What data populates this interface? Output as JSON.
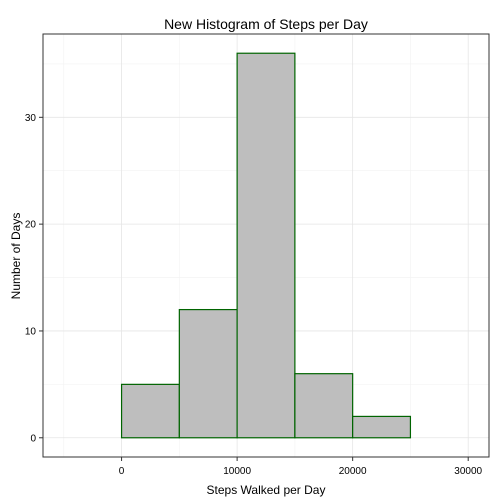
{
  "chart_data": {
    "type": "bar",
    "title": "New Histogram of Steps per Day",
    "xlabel": "Steps Walked per Day",
    "ylabel": "Number of Days",
    "bin_width": 5000,
    "bins": [
      {
        "start": -5000,
        "end": 0,
        "count": 0
      },
      {
        "start": 0,
        "end": 5000,
        "count": 5
      },
      {
        "start": 5000,
        "end": 10000,
        "count": 12
      },
      {
        "start": 10000,
        "end": 15000,
        "count": 36
      },
      {
        "start": 15000,
        "end": 20000,
        "count": 6
      },
      {
        "start": 20000,
        "end": 25000,
        "count": 2
      },
      {
        "start": 25000,
        "end": 30000,
        "count": 0
      }
    ],
    "xlim": [
      -6800,
      31800
    ],
    "ylim": [
      -1.8,
      37.8
    ],
    "x_ticks": [
      {
        "value": 0,
        "label": "0"
      },
      {
        "value": 10000,
        "label": "10000"
      },
      {
        "value": 20000,
        "label": "20000"
      },
      {
        "value": 30000,
        "label": "30000"
      }
    ],
    "y_ticks": [
      {
        "value": 0,
        "label": "0"
      },
      {
        "value": 10,
        "label": "10"
      },
      {
        "value": 20,
        "label": "20"
      },
      {
        "value": 30,
        "label": "30"
      }
    ],
    "grid": true,
    "colors": {
      "bar_fill": "#bebebe",
      "bar_outline": "#006400",
      "background": "#ffffff",
      "grid_major": "#e5e5e5",
      "grid_minor": "#f2f2f2",
      "panel_border": "#333333"
    }
  }
}
